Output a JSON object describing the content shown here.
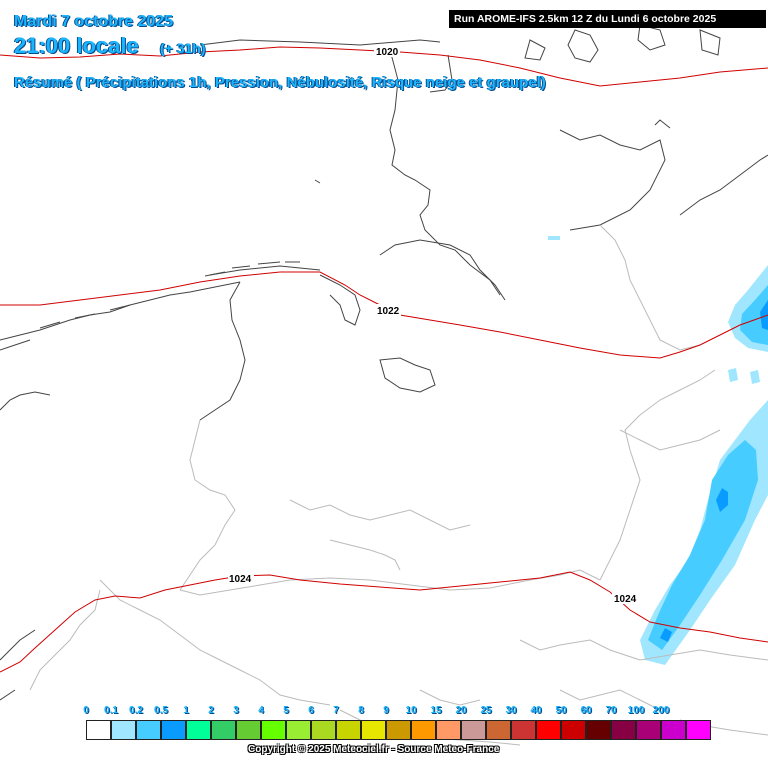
{
  "title": {
    "date": "Mardi 7 octobre 2025",
    "time": "21:00 locale",
    "offset": "(+ 31h)",
    "summary": "Résumé ( Précipitations 1h, Pression, Nébulosité, Risque neige et graupel)"
  },
  "run_banner": "Run AROME-IFS 2.5km 12 Z du Lundi 6 octobre 2025",
  "isobars": [
    {
      "label": "1020",
      "color": "#d00000"
    },
    {
      "label": "1022",
      "color": "#d00000"
    },
    {
      "label": "1024",
      "color": "#d00000"
    },
    {
      "label": "1024",
      "color": "#d00000"
    }
  ],
  "legend": {
    "unit_note": "",
    "items": [
      {
        "label": "0",
        "color": "#ffffff"
      },
      {
        "label": "0.1",
        "color": "#a0e6ff"
      },
      {
        "label": "0.2",
        "color": "#46ccff"
      },
      {
        "label": "0.5",
        "color": "#0a9bff"
      },
      {
        "label": "1",
        "color": "#00ff99"
      },
      {
        "label": "2",
        "color": "#33cc66"
      },
      {
        "label": "3",
        "color": "#66cc33"
      },
      {
        "label": "4",
        "color": "#66ff00"
      },
      {
        "label": "5",
        "color": "#99ee33"
      },
      {
        "label": "6",
        "color": "#aad922"
      },
      {
        "label": "7",
        "color": "#c8d400"
      },
      {
        "label": "8",
        "color": "#e6e600"
      },
      {
        "label": "9",
        "color": "#cc9900"
      },
      {
        "label": "10",
        "color": "#ff9900"
      },
      {
        "label": "15",
        "color": "#ff9966"
      },
      {
        "label": "20",
        "color": "#cc9999"
      },
      {
        "label": "25",
        "color": "#cc6633"
      },
      {
        "label": "30",
        "color": "#cc3333"
      },
      {
        "label": "40",
        "color": "#ff0000"
      },
      {
        "label": "50",
        "color": "#cc0000"
      },
      {
        "label": "60",
        "color": "#660000"
      },
      {
        "label": "70",
        "color": "#880044"
      },
      {
        "label": "100",
        "color": "#aa0077"
      },
      {
        "label": "200",
        "color": "#cc00cc"
      },
      {
        "label": "",
        "color": "#ff00ff"
      }
    ]
  },
  "copyright": "Copyright © 2025 Meteociel.fr - Source Meteo-France",
  "colors": {
    "title": "#19b6ff",
    "isobar": "#d00000",
    "coast": "#444444",
    "border": "#bbbbbb",
    "precip_light": "#a0e6ff",
    "precip_mid": "#46ccff",
    "precip_heavy": "#0a9bff"
  }
}
